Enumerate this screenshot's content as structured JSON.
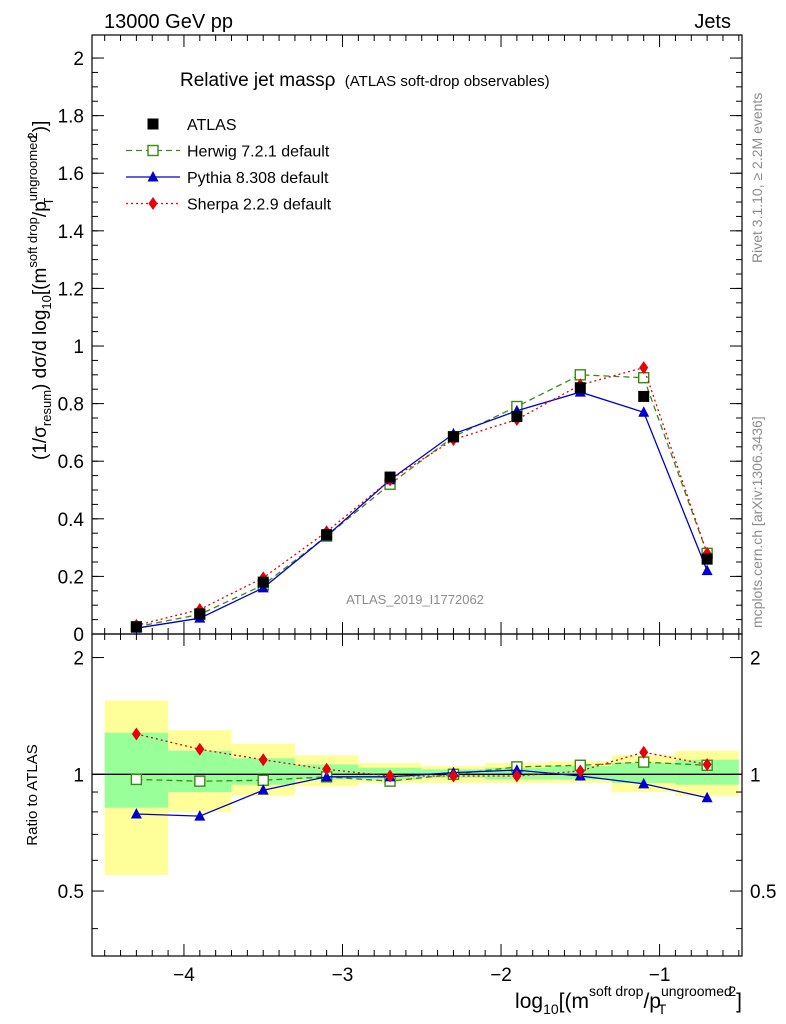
{
  "header": {
    "left": "13000 GeV pp",
    "right": "Jets"
  },
  "title": {
    "main": "Relative jet massρ",
    "sub": "(ATLAS soft-drop observables)"
  },
  "side_labels": {
    "rivet": "Rivet 3.1.10, ≥ 2.2M events",
    "mcplots": "mcplots.cern.ch [arXiv:1306.3436]"
  },
  "watermark": "ATLAS_2019_I1772062",
  "axes": {
    "top_ylabel": "(1/σresum) dσ/d log10[(m soft drop/pT ungroomed)2]",
    "bottom_ylabel": "Ratio to ATLAS",
    "xlabel": "log10[(m soft drop/pT ungroomed)2]"
  },
  "legend": [
    {
      "name": "ATLAS",
      "color": "#000000",
      "marker": "square-filled",
      "line": "none"
    },
    {
      "name": "Herwig 7.2.1 default",
      "color": "#3a8a14",
      "marker": "square-open",
      "line": "dashed"
    },
    {
      "name": "Pythia 8.308 default",
      "color": "#0000cc",
      "marker": "triangle",
      "line": "solid"
    },
    {
      "name": "Sherpa 2.2.9 default",
      "color": "#e8000b",
      "marker": "diamond",
      "line": "dotted"
    }
  ],
  "chart_data": [
    {
      "type": "line",
      "panel": "main",
      "xlim": [
        -4.58,
        -0.48
      ],
      "ylim": [
        0,
        2.08
      ],
      "xticks": [
        -4,
        -3,
        -2,
        -1
      ],
      "yticks": [
        0,
        0.2,
        0.4,
        0.6,
        0.8,
        1,
        1.2,
        1.4,
        1.6,
        1.8,
        2
      ],
      "ytick_labels": [
        "0",
        "0.2",
        "0.4",
        "0.6",
        "0.8",
        "1",
        "1.2",
        "1.4",
        "1.6",
        "1.8",
        "2"
      ],
      "x": [
        -4.3,
        -3.9,
        -3.5,
        -3.1,
        -2.7,
        -2.3,
        -1.9,
        -1.5,
        -1.1,
        -0.7
      ],
      "series": [
        {
          "name": "ATLAS",
          "values": [
            0.025,
            0.07,
            0.18,
            0.345,
            0.545,
            0.685,
            0.755,
            0.855,
            0.825,
            0.26
          ]
        },
        {
          "name": "Herwig 7.2.1 default",
          "values": [
            0.025,
            0.068,
            0.17,
            0.34,
            0.52,
            0.685,
            0.79,
            0.9,
            0.89,
            0.28
          ]
        },
        {
          "name": "Pythia 8.308 default",
          "values": [
            0.02,
            0.055,
            0.16,
            0.34,
            0.535,
            0.695,
            0.775,
            0.84,
            0.77,
            0.22
          ]
        },
        {
          "name": "Sherpa 2.2.9 default",
          "values": [
            0.03,
            0.085,
            0.195,
            0.355,
            0.535,
            0.675,
            0.745,
            0.865,
            0.925,
            0.28
          ]
        }
      ]
    },
    {
      "type": "line",
      "panel": "ratio",
      "xlim": [
        -4.58,
        -0.48
      ],
      "ylim": [
        0.34,
        2.3
      ],
      "xticks": [
        -4,
        -3,
        -2,
        -1
      ],
      "xtick_labels": [
        "−4",
        "−3",
        "−2",
        "−1"
      ],
      "yticks": [
        0.5,
        1,
        2
      ],
      "ytick_labels": [
        "0.5",
        "1",
        "2"
      ],
      "log_y": true,
      "x": [
        -4.3,
        -3.9,
        -3.5,
        -3.1,
        -2.7,
        -2.3,
        -1.9,
        -1.5,
        -1.1,
        -0.7
      ],
      "bin_edges": [
        -4.5,
        -4.1,
        -3.7,
        -3.3,
        -2.9,
        -2.5,
        -2.1,
        -1.7,
        -1.3,
        -0.9,
        -0.5
      ],
      "band_outer": [
        [
          0.55,
          1.55
        ],
        [
          0.8,
          1.3
        ],
        [
          0.88,
          1.2
        ],
        [
          0.93,
          1.12
        ],
        [
          0.95,
          1.07
        ],
        [
          0.95,
          1.05
        ],
        [
          0.95,
          1.07
        ],
        [
          0.95,
          1.08
        ],
        [
          0.9,
          1.12
        ],
        [
          0.88,
          1.15
        ]
      ],
      "band_inner": [
        [
          0.82,
          1.28
        ],
        [
          0.9,
          1.15
        ],
        [
          0.94,
          1.1
        ],
        [
          0.97,
          1.06
        ],
        [
          0.97,
          1.04
        ],
        [
          0.98,
          1.03
        ],
        [
          0.97,
          1.04
        ],
        [
          0.97,
          1.05
        ],
        [
          0.95,
          1.07
        ],
        [
          0.94,
          1.09
        ]
      ],
      "series": [
        {
          "name": "Herwig 7.2.1 default",
          "values": [
            0.97,
            0.96,
            0.965,
            0.985,
            0.96,
            1.0,
            1.045,
            1.055,
            1.075,
            1.055
          ]
        },
        {
          "name": "Pythia 8.308 default",
          "values": [
            0.79,
            0.78,
            0.91,
            0.985,
            0.985,
            1.01,
            1.025,
            0.99,
            0.945,
            0.87
          ]
        },
        {
          "name": "Sherpa 2.2.9 default",
          "values": [
            1.27,
            1.16,
            1.09,
            1.03,
            0.99,
            0.99,
            0.99,
            1.02,
            1.14,
            1.06
          ]
        }
      ]
    }
  ]
}
